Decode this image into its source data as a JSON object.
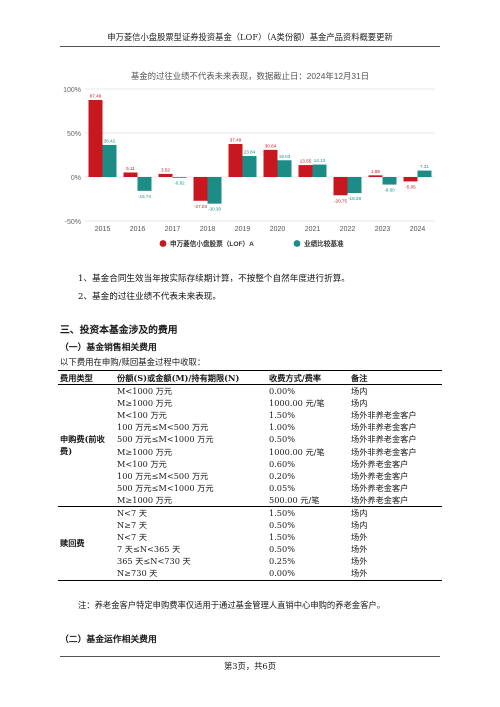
{
  "header": {
    "title": "申万菱信小盘股票型证券投资基金（LOF）（A类份额）基金产品资料概要更新"
  },
  "chart_data": {
    "type": "bar",
    "title": "基金的过往业绩不代表未来表现，数据截止日：2024年12月31日",
    "categories": [
      "2015",
      "2016",
      "2017",
      "2018",
      "2019",
      "2020",
      "2021",
      "2022",
      "2023",
      "2024"
    ],
    "ytick_labels": [
      "100%",
      "50%",
      "0%",
      "-50%"
    ],
    "ylim": [
      -50,
      100
    ],
    "grid": true,
    "legend_position": "bottom-center",
    "series": [
      {
        "name": "申万菱信小盘股票（LOF）A",
        "color": "#c8171e",
        "values": [
          87.49,
          5.11,
          3.52,
          -27.03,
          37.49,
          30.84,
          13.55,
          -20.75,
          1.89,
          -5.05
        ],
        "labels": [
          "87.49",
          "5.11",
          "3.52",
          "-27.03",
          "37.49",
          "30.84",
          "13.55",
          "-20.75",
          "1.89",
          "-5.05"
        ]
      },
      {
        "name": "业绩比较基准",
        "color": "#1e8c86",
        "values": [
          36.42,
          -15.74,
          -0.82,
          -30.3,
          23.84,
          19.03,
          14.12,
          -18.28,
          -8.6,
          7.31
        ],
        "labels": [
          "36.42",
          "-15.74",
          "-0.82",
          "-30.30",
          "23.84",
          "19.03",
          "14.12",
          "-18.28",
          "-8.60",
          "7.31"
        ]
      }
    ]
  },
  "notes": [
    "1、基金合同生效当年按实际存续期计算，不按整个自然年度进行折算。",
    "2、基金的过往业绩不代表未来表现。"
  ],
  "section3": {
    "title": "三、投资本基金涉及的费用"
  },
  "sales_fee": {
    "title": "（一）基金销售相关费用",
    "intro": "以下费用在申购/赎回基金过程中收取："
  },
  "fee_table": {
    "headers": {
      "type": "费用类型",
      "amount": "份额(S)或金额(M)/持有期限(N)",
      "rate": "收费方式/费率",
      "remark": "备注"
    },
    "purchase": {
      "label": "申购费(前收费)",
      "rows": [
        {
          "amount": "M<1000 万元",
          "rate": "0.00%",
          "remark": "场内"
        },
        {
          "amount": "M≥1000 万元",
          "rate": "1000.00 元/笔",
          "remark": "场内"
        },
        {
          "amount": "M<100 万元",
          "rate": "1.50%",
          "remark": "场外非养老金客户"
        },
        {
          "amount": "100 万元≤M<500 万元",
          "rate": "1.00%",
          "remark": "场外非养老金客户"
        },
        {
          "amount": "500 万元≤M<1000 万元",
          "rate": "0.50%",
          "remark": "场外非养老金客户"
        },
        {
          "amount": "M≥1000 万元",
          "rate": "1000.00 元/笔",
          "remark": "场外非养老金客户"
        },
        {
          "amount": "M<100 万元",
          "rate": "0.60%",
          "remark": "场外养老金客户"
        },
        {
          "amount": "100 万元≤M<500 万元",
          "rate": "0.20%",
          "remark": "场外养老金客户"
        },
        {
          "amount": "500 万元≤M<1000 万元",
          "rate": "0.05%",
          "remark": "场外养老金客户"
        },
        {
          "amount": "M≥1000 万元",
          "rate": "500.00 元/笔",
          "remark": "场外养老金客户"
        }
      ]
    },
    "redemption": {
      "label": "赎回费",
      "rows": [
        {
          "amount": "N<7 天",
          "rate": "1.50%",
          "remark": "场内"
        },
        {
          "amount": "N≥7 天",
          "rate": "0.50%",
          "remark": "场内"
        },
        {
          "amount": "N<7 天",
          "rate": "1.50%",
          "remark": "场外"
        },
        {
          "amount": "7 天≤N<365 天",
          "rate": "0.50%",
          "remark": "场外"
        },
        {
          "amount": "365 天≤N<730 天",
          "rate": "0.25%",
          "remark": "场外"
        },
        {
          "amount": "N≥730 天",
          "rate": "0.00%",
          "remark": "场外"
        }
      ]
    }
  },
  "footnote": "注：养老金客户特定申购费率仅适用于通过基金管理人直销中心申购的养老金客户。",
  "operation_fee": {
    "title": "（二）基金运作相关费用"
  },
  "footer": {
    "page": "第3页，共6页"
  }
}
